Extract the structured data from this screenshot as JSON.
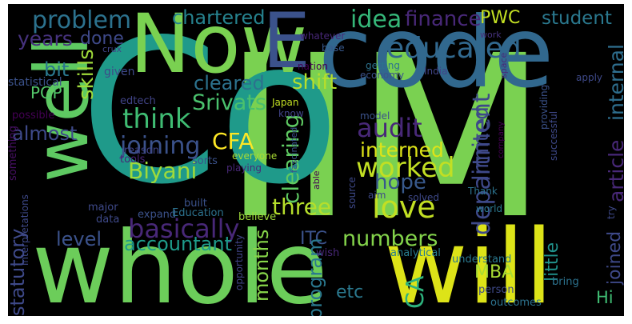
{
  "background_color": "#000000",
  "words": [
    {
      "text": "IIM",
      "color": "#7ad151"
    },
    {
      "text": "Co",
      "color": "#1f9a8a"
    },
    {
      "text": "whole",
      "color": "#6ccd5a"
    },
    {
      "text": "will",
      "color": "#dde318"
    },
    {
      "text": "code",
      "color": "#31688e"
    },
    {
      "text": "Now",
      "color": "#7ad151"
    },
    {
      "text": "well",
      "color": "#5ec962"
    },
    {
      "text": "E",
      "color": "#3b528b"
    },
    {
      "text": "educated",
      "color": "#31688e"
    },
    {
      "text": "problem",
      "color": "#2c728e"
    },
    {
      "text": "chartered",
      "color": "#26828e"
    },
    {
      "text": "idea",
      "color": "#35b779"
    },
    {
      "text": "finance",
      "color": "#482878"
    },
    {
      "text": "PWC",
      "color": "#c2df23"
    },
    {
      "text": "student",
      "color": "#2a788e"
    },
    {
      "text": "years",
      "color": "#46327e"
    },
    {
      "text": "done",
      "color": "#3e4989"
    },
    {
      "text": "bit",
      "color": "#2a788e"
    },
    {
      "text": "PGP",
      "color": "#52c569"
    },
    {
      "text": "cleared",
      "color": "#2c728e"
    },
    {
      "text": "Srivats",
      "color": "#4ac16d"
    },
    {
      "text": "shift",
      "color": "#b5de2b"
    },
    {
      "text": "skills",
      "color": "#9fda3a"
    },
    {
      "text": "think",
      "color": "#3fbc73"
    },
    {
      "text": "audit",
      "color": "#482878"
    },
    {
      "text": "almost",
      "color": "#3e4989"
    },
    {
      "text": "joining",
      "color": "#3b528b"
    },
    {
      "text": "CFA",
      "color": "#fde725"
    },
    {
      "text": "interned",
      "color": "#dde318"
    },
    {
      "text": "Biyani",
      "color": "#9fda3a"
    },
    {
      "text": "worked",
      "color": "#c2df23"
    },
    {
      "text": "hope",
      "color": "#38598c"
    },
    {
      "text": "love",
      "color": "#c2df23"
    },
    {
      "text": "basically",
      "color": "#482878"
    },
    {
      "text": "accountant",
      "color": "#1e9b8a"
    },
    {
      "text": "level",
      "color": "#3b528b"
    },
    {
      "text": "three",
      "color": "#b5de2b"
    },
    {
      "text": "clearing",
      "color": "#5ec962"
    },
    {
      "text": "limited",
      "color": "#3e4989"
    },
    {
      "text": "department",
      "color": "#3e4989"
    },
    {
      "text": "article",
      "color": "#482878"
    },
    {
      "text": "internal",
      "color": "#2e6e8e"
    },
    {
      "text": "numbers",
      "color": "#84d44b"
    },
    {
      "text": "ITC",
      "color": "#3b528b"
    },
    {
      "text": "statutory",
      "color": "#3e4989"
    },
    {
      "text": "months",
      "color": "#86d549"
    },
    {
      "text": "program",
      "color": "#2a788e"
    },
    {
      "text": "etc",
      "color": "#2a788e"
    },
    {
      "text": "MBA",
      "color": "#a8db34"
    },
    {
      "text": "little",
      "color": "#20928c"
    },
    {
      "text": "joined",
      "color": "#3e4989"
    },
    {
      "text": "CA",
      "color": "#2db27d"
    },
    {
      "text": "Hi",
      "color": "#3fbc73"
    },
    {
      "text": "crux",
      "color": "#414487"
    },
    {
      "text": "given",
      "color": "#3e4989"
    },
    {
      "text": "statistical",
      "color": "#3b528b"
    },
    {
      "text": "possible",
      "color": "#440154"
    },
    {
      "text": "edtech",
      "color": "#414487"
    },
    {
      "text": "reason",
      "color": "#414487"
    },
    {
      "text": "tools",
      "color": "#482475"
    },
    {
      "text": "sorts",
      "color": "#3b528b"
    },
    {
      "text": "something",
      "color": "#471063"
    },
    {
      "text": "built",
      "color": "#3b528b"
    },
    {
      "text": "major",
      "color": "#3e4989"
    },
    {
      "text": "data",
      "color": "#3e4989"
    },
    {
      "text": "expand",
      "color": "#3b528b"
    },
    {
      "text": "Education",
      "color": "#2c728e"
    },
    {
      "text": "believe",
      "color": "#9fda3a"
    },
    {
      "text": "interpretations",
      "color": "#3e4989"
    },
    {
      "text": "opportunity",
      "color": "#414487"
    },
    {
      "text": "wish",
      "color": "#482878"
    },
    {
      "text": "analytical",
      "color": "#287c8e"
    },
    {
      "text": "understand",
      "color": "#2a788e"
    },
    {
      "text": "person",
      "color": "#3e4989"
    },
    {
      "text": "bring",
      "color": "#2c728e"
    },
    {
      "text": "outcomes",
      "color": "#2c728e"
    },
    {
      "text": "whatever",
      "color": "#482878"
    },
    {
      "text": "base",
      "color": "#38598c"
    },
    {
      "text": "work",
      "color": "#46327e"
    },
    {
      "text": "nation",
      "color": "#440154"
    },
    {
      "text": "getting",
      "color": "#2c728e"
    },
    {
      "text": "economy",
      "color": "#3b528b"
    },
    {
      "text": "India",
      "color": "#414487"
    },
    {
      "text": "space",
      "color": "#482878"
    },
    {
      "text": "apply",
      "color": "#3e4989"
    },
    {
      "text": "providing",
      "color": "#3b528b"
    },
    {
      "text": "successful",
      "color": "#3e4989"
    },
    {
      "text": "Japan",
      "color": "#c2df23"
    },
    {
      "text": "know",
      "color": "#414487"
    },
    {
      "text": "model",
      "color": "#3b528b"
    },
    {
      "text": "company",
      "color": "#440154"
    },
    {
      "text": "fascinated",
      "color": "#3b528b"
    },
    {
      "text": "everyone",
      "color": "#a8db34"
    },
    {
      "text": "playing",
      "color": "#482878"
    },
    {
      "text": "able",
      "color": "#440154"
    },
    {
      "text": "aim",
      "color": "#3e4989"
    },
    {
      "text": "source",
      "color": "#3e4989"
    },
    {
      "text": "solved",
      "color": "#3e4989"
    },
    {
      "text": "Thank",
      "color": "#2c728e"
    },
    {
      "text": "world",
      "color": "#2a788e"
    },
    {
      "text": "try",
      "color": "#3e4989"
    }
  ]
}
